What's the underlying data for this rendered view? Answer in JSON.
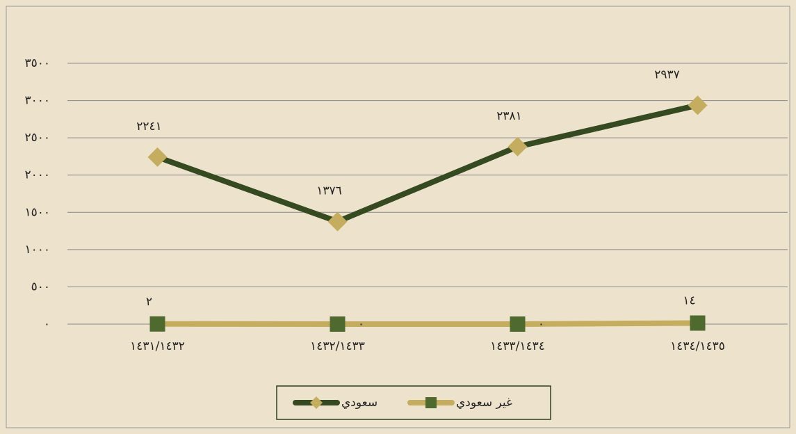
{
  "chart_data": {
    "type": "line",
    "categories": [
      "١٤٣١/١٤٣٢",
      "١٤٣٢/١٤٣٣",
      "١٤٣٣/١٤٣٤",
      "١٤٣٤/١٤٣٥"
    ],
    "series": [
      {
        "name": "سعودي",
        "color": "#354a21",
        "marker_color": "#c4ad5e",
        "marker": "diamond",
        "values": [
          2241,
          1376,
          2381,
          2937
        ],
        "value_labels": [
          "٢٢٤١",
          "١٣٧٦",
          "٢٣٨١",
          "٢٩٣٧"
        ]
      },
      {
        "name": "غير سعودي",
        "color": "#c4ad5e",
        "marker_color": "#4f6a2e",
        "marker": "square",
        "values": [
          2,
          0,
          0,
          14
        ],
        "value_labels": [
          "٢",
          "٠",
          "٠",
          "١٤"
        ]
      }
    ],
    "ylim": [
      0,
      3500
    ],
    "yticks": [
      {
        "value": 0,
        "label": "٠"
      },
      {
        "value": 500,
        "label": "٥٠٠"
      },
      {
        "value": 1000,
        "label": "١٠٠٠"
      },
      {
        "value": 1500,
        "label": "١٥٠٠"
      },
      {
        "value": 2000,
        "label": "٢٠٠٠"
      },
      {
        "value": 2500,
        "label": "٢٥٠٠"
      },
      {
        "value": 3000,
        "label": "٣٠٠٠"
      },
      {
        "value": 3500,
        "label": "٣٥٠٠"
      }
    ],
    "grid": true,
    "legend": "bottom"
  }
}
